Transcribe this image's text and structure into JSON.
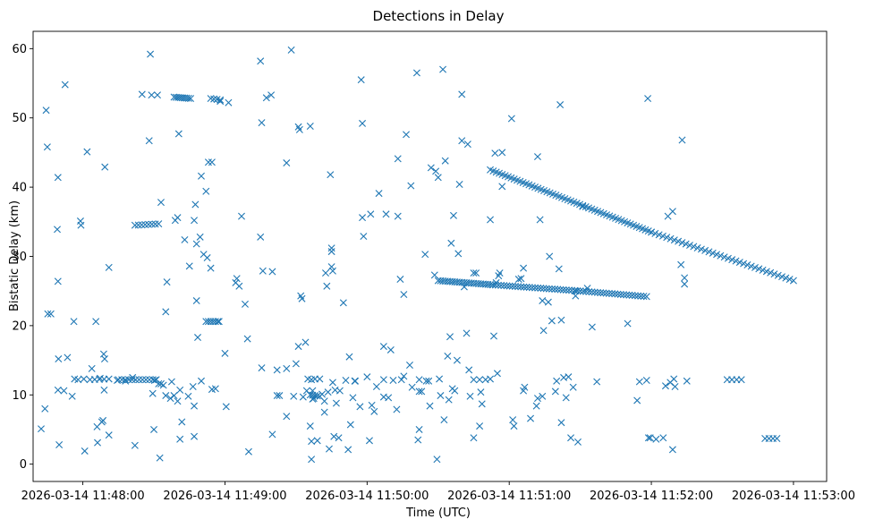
{
  "chart_data": {
    "type": "scatter",
    "title": "Detections in Delay",
    "xlabel": "Time (UTC)",
    "ylabel": "Bistatic Delay (km)",
    "marker": "x",
    "color": "#1f77b4",
    "xlim_seconds": [
      -21,
      314
    ],
    "ylim": [
      -2.5,
      62.5
    ],
    "x_ticks": [
      {
        "t": 0,
        "label": "2026-03-14 11:48:00"
      },
      {
        "t": 60,
        "label": "2026-03-14 11:49:00"
      },
      {
        "t": 120,
        "label": "2026-03-14 11:50:00"
      },
      {
        "t": 180,
        "label": "2026-03-14 11:51:00"
      },
      {
        "t": 240,
        "label": "2026-03-14 11:52:00"
      },
      {
        "t": 300,
        "label": "2026-03-14 11:53:00"
      }
    ],
    "y_ticks": [
      {
        "v": 0,
        "label": "0"
      },
      {
        "v": 10,
        "label": "10"
      },
      {
        "v": 20,
        "label": "20"
      },
      {
        "v": 30,
        "label": "30"
      },
      {
        "v": 40,
        "label": "40"
      },
      {
        "v": 50,
        "label": "50"
      },
      {
        "v": 60,
        "label": "60"
      }
    ],
    "tracks": [
      {
        "t0": 38.5,
        "t1": 45.5,
        "v0": 53.0,
        "v1": 52.8,
        "n": 9
      },
      {
        "t0": 54,
        "t1": 58,
        "v0": 52.8,
        "v1": 52.6,
        "n": 4
      },
      {
        "t0": 22,
        "t1": 32,
        "v0": 34.5,
        "v1": 34.7,
        "n": 8
      },
      {
        "t0": 52,
        "t1": 57,
        "v0": 20.6,
        "v1": 20.6,
        "n": 6
      },
      {
        "t0": 3,
        "t1": 11,
        "v0": 12.2,
        "v1": 12.3,
        "n": 5
      },
      {
        "t0": 15,
        "t1": 31,
        "v0": 12.2,
        "v1": 12.2,
        "n": 12
      },
      {
        "t0": 127,
        "t1": 142,
        "v0": 12.2,
        "v1": 12.2,
        "n": 3
      },
      {
        "t0": 96,
        "t1": 100,
        "v0": 10.0,
        "v1": 9.8,
        "n": 5
      },
      {
        "t0": 165,
        "t1": 170,
        "v0": 12.2,
        "v1": 12.2,
        "n": 3
      },
      {
        "t0": 272,
        "t1": 278,
        "v0": 12.2,
        "v1": 12.2,
        "n": 4
      },
      {
        "t0": 288,
        "t1": 293,
        "v0": 3.7,
        "v1": 3.7,
        "n": 4
      },
      {
        "t0": 172,
        "t1": 240,
        "v0": 42.5,
        "v1": 33.5,
        "n": 55
      },
      {
        "t0": 240,
        "t1": 300,
        "v0": 33.5,
        "v1": 26.5,
        "n": 38
      },
      {
        "t0": 150,
        "t1": 173,
        "v0": 26.5,
        "v1": 25.9,
        "n": 24
      },
      {
        "t0": 173,
        "t1": 210,
        "v0": 25.9,
        "v1": 25.0,
        "n": 32
      },
      {
        "t0": 210,
        "t1": 238,
        "v0": 25.0,
        "v1": 24.2,
        "n": 24
      }
    ],
    "points": [
      [
        -17.6,
        5.1
      ],
      [
        -16,
        8
      ],
      [
        -15.5,
        51.1
      ],
      [
        -15,
        45.8
      ],
      [
        -14.8,
        21.7
      ],
      [
        -13.5,
        21.7
      ],
      [
        -10.5,
        41.4
      ],
      [
        -10.8,
        33.9
      ],
      [
        -10.5,
        26.4
      ],
      [
        -10.3,
        15.2
      ],
      [
        -10.5,
        10.7
      ],
      [
        -10,
        2.8
      ],
      [
        -8,
        10.6
      ],
      [
        -7.5,
        54.8
      ],
      [
        -6.5,
        15.4
      ],
      [
        -4.5,
        9.8
      ],
      [
        -3.8,
        20.6
      ],
      [
        -3.5,
        12.3
      ],
      [
        -2,
        12.2
      ],
      [
        -1,
        35.1
      ],
      [
        -0.8,
        34.5
      ],
      [
        0.4,
        12.3
      ],
      [
        0.8,
        1.9
      ],
      [
        1.8,
        45.1
      ],
      [
        3.8,
        13.8
      ],
      [
        5.5,
        20.6
      ],
      [
        6,
        5.4
      ],
      [
        6.2,
        3.1
      ],
      [
        7.3,
        12.4
      ],
      [
        8,
        6.1
      ],
      [
        8.5,
        6.3
      ],
      [
        8.8,
        15.9
      ],
      [
        9,
        10.7
      ],
      [
        9.2,
        15.2
      ],
      [
        9.3,
        42.9
      ],
      [
        11,
        28.4
      ],
      [
        11,
        4.2
      ],
      [
        14.5,
        12.1
      ],
      [
        18,
        12.0
      ],
      [
        21,
        12.5
      ],
      [
        22,
        2.7
      ],
      [
        25,
        53.4
      ],
      [
        28,
        46.7
      ],
      [
        28.5,
        59.2
      ],
      [
        29,
        53.3
      ],
      [
        29.5,
        10.2
      ],
      [
        30,
        5.0
      ],
      [
        30.3,
        12.1
      ],
      [
        31.5,
        53.3
      ],
      [
        32,
        11.6
      ],
      [
        32.5,
        0.9
      ],
      [
        33,
        11.6
      ],
      [
        33,
        37.8
      ],
      [
        34,
        11.4
      ],
      [
        35,
        9.9
      ],
      [
        35,
        22
      ],
      [
        35.5,
        26.3
      ],
      [
        37,
        9.5
      ],
      [
        37.5,
        11.9
      ],
      [
        38.5,
        9.9
      ],
      [
        39,
        35.2
      ],
      [
        40,
        35.6
      ],
      [
        40,
        9.1
      ],
      [
        40.5,
        47.7
      ],
      [
        41,
        10.7
      ],
      [
        41,
        3.6
      ],
      [
        41.8,
        6.1
      ],
      [
        43,
        32.4
      ],
      [
        44.5,
        9.8
      ],
      [
        45,
        28.6
      ],
      [
        46.5,
        11.2
      ],
      [
        47,
        8.4
      ],
      [
        47,
        35.2
      ],
      [
        47,
        4.0
      ],
      [
        47.5,
        37.5
      ],
      [
        48,
        31.8
      ],
      [
        48,
        23.6
      ],
      [
        48.5,
        18.3
      ],
      [
        49.5,
        32.8
      ],
      [
        50,
        12
      ],
      [
        50,
        41.6
      ],
      [
        51,
        30.3
      ],
      [
        52,
        39.4
      ],
      [
        52.5,
        29.8
      ],
      [
        53,
        43.6
      ],
      [
        54,
        28.3
      ],
      [
        54.5,
        10.8
      ],
      [
        54.5,
        43.6
      ],
      [
        56,
        10.9
      ],
      [
        57.5,
        20.6
      ],
      [
        58,
        52.4
      ],
      [
        60,
        16
      ],
      [
        60.5,
        8.3
      ],
      [
        61.5,
        52.2
      ],
      [
        64.5,
        26.2
      ],
      [
        65,
        26.8
      ],
      [
        66,
        25.7
      ],
      [
        67,
        35.8
      ],
      [
        68.5,
        23.1
      ],
      [
        69.5,
        18.1
      ],
      [
        70,
        1.8
      ],
      [
        75,
        58.2
      ],
      [
        75,
        32.8
      ],
      [
        75.5,
        49.3
      ],
      [
        75.5,
        13.9
      ],
      [
        76,
        27.9
      ],
      [
        77.5,
        52.9
      ],
      [
        79.5,
        53.3
      ],
      [
        80,
        4.3
      ],
      [
        80,
        27.8
      ],
      [
        82,
        13.6
      ],
      [
        82,
        9.9
      ],
      [
        83,
        9.9
      ],
      [
        86,
        6.9
      ],
      [
        86,
        13.8
      ],
      [
        86,
        43.5
      ],
      [
        88,
        59.8
      ],
      [
        89,
        9.8
      ],
      [
        90,
        14.5
      ],
      [
        91,
        17
      ],
      [
        91,
        48.7
      ],
      [
        91.5,
        48.3
      ],
      [
        92,
        24.3
      ],
      [
        92.5,
        23.9
      ],
      [
        93,
        9.7
      ],
      [
        94,
        17.6
      ],
      [
        94.5,
        10.6
      ],
      [
        95,
        12.3
      ],
      [
        96,
        48.8
      ],
      [
        96,
        5.5
      ],
      [
        96.5,
        12.2
      ],
      [
        96.5,
        0.7
      ],
      [
        96.5,
        3.3
      ],
      [
        97,
        9.4
      ],
      [
        97,
        10.6
      ],
      [
        97.5,
        9.5
      ],
      [
        98,
        12.3
      ],
      [
        99,
        3.4
      ],
      [
        100,
        12.3
      ],
      [
        101,
        10.1
      ],
      [
        102,
        7.5
      ],
      [
        102,
        9.1
      ],
      [
        102.5,
        27.6
      ],
      [
        103,
        25.7
      ],
      [
        103.5,
        10.4
      ],
      [
        104,
        2.2
      ],
      [
        104.5,
        41.8
      ],
      [
        105,
        30.7
      ],
      [
        105,
        31.2
      ],
      [
        105,
        28.5
      ],
      [
        105.5,
        27.9
      ],
      [
        105.5,
        11.8
      ],
      [
        106,
        4.0
      ],
      [
        106.5,
        10.7
      ],
      [
        107,
        8.8
      ],
      [
        108,
        3.8
      ],
      [
        108.5,
        10.6
      ],
      [
        110,
        23.3
      ],
      [
        111,
        12.1
      ],
      [
        112,
        2.1
      ],
      [
        112.5,
        15.5
      ],
      [
        113,
        5.7
      ],
      [
        114,
        9.6
      ],
      [
        114.8,
        12
      ],
      [
        115,
        12
      ],
      [
        117,
        8.3
      ],
      [
        117.5,
        55.5
      ],
      [
        118,
        49.2
      ],
      [
        118,
        35.6
      ],
      [
        118.5,
        32.9
      ],
      [
        120,
        12.6
      ],
      [
        121,
        3.4
      ],
      [
        121.5,
        36.1
      ],
      [
        122,
        8.5
      ],
      [
        123,
        7.6
      ],
      [
        124,
        11.2
      ],
      [
        125,
        39.1
      ],
      [
        127,
        9.7
      ],
      [
        127,
        17
      ],
      [
        128,
        36.1
      ],
      [
        129,
        9.6
      ],
      [
        130,
        16.5
      ],
      [
        131,
        12.1
      ],
      [
        132.5,
        7.9
      ],
      [
        133,
        44.1
      ],
      [
        133,
        35.8
      ],
      [
        134,
        26.7
      ],
      [
        135.5,
        24.5
      ],
      [
        135.5,
        12.7
      ],
      [
        136.5,
        47.6
      ],
      [
        138,
        14.3
      ],
      [
        138.5,
        40.2
      ],
      [
        139,
        11.1
      ],
      [
        141,
        56.5
      ],
      [
        141.5,
        3.5
      ],
      [
        142,
        10.5
      ],
      [
        142,
        5.0
      ],
      [
        143,
        10.5
      ],
      [
        144.5,
        30.3
      ],
      [
        145,
        12.0
      ],
      [
        146,
        12
      ],
      [
        146.5,
        8.4
      ],
      [
        147,
        42.8
      ],
      [
        148.5,
        27.3
      ],
      [
        149,
        42.3
      ],
      [
        149.5,
        0.7
      ],
      [
        150,
        41.4
      ],
      [
        150.5,
        12.3
      ],
      [
        151,
        9.9
      ],
      [
        152,
        57
      ],
      [
        152.5,
        6.4
      ],
      [
        153,
        43.8
      ],
      [
        154,
        15.6
      ],
      [
        154.5,
        9.3
      ],
      [
        155,
        18.4
      ],
      [
        155.5,
        31.9
      ],
      [
        156,
        10.9
      ],
      [
        156.5,
        35.9
      ],
      [
        157,
        10.6
      ],
      [
        158,
        15
      ],
      [
        158.5,
        30.4
      ],
      [
        159,
        40.4
      ],
      [
        160,
        46.7
      ],
      [
        160,
        53.4
      ],
      [
        161,
        25.6
      ],
      [
        162,
        18.9
      ],
      [
        162.5,
        46.2
      ],
      [
        163,
        13.6
      ],
      [
        163.5,
        9.8
      ],
      [
        165,
        27.6
      ],
      [
        165,
        3.8
      ],
      [
        166,
        27.6
      ],
      [
        167.5,
        5.5
      ],
      [
        168,
        10.4
      ],
      [
        168.5,
        8.7
      ],
      [
        172,
        35.3
      ],
      [
        172,
        12.3
      ],
      [
        173.5,
        18.5
      ],
      [
        174,
        44.9
      ],
      [
        174.5,
        26.2
      ],
      [
        175,
        13.1
      ],
      [
        175.5,
        27.2
      ],
      [
        176,
        27.6
      ],
      [
        177,
        45
      ],
      [
        177,
        40.1
      ],
      [
        181,
        49.9
      ],
      [
        181.5,
        6.4
      ],
      [
        182,
        5.5
      ],
      [
        184,
        26.7
      ],
      [
        185,
        26.8
      ],
      [
        186,
        28.3
      ],
      [
        186,
        10.6
      ],
      [
        186.5,
        11.1
      ],
      [
        189,
        6.6
      ],
      [
        191.5,
        8.4
      ],
      [
        192,
        9.5
      ],
      [
        192,
        44.4
      ],
      [
        193,
        35.3
      ],
      [
        194,
        23.6
      ],
      [
        194,
        9.8
      ],
      [
        194.5,
        19.3
      ],
      [
        196.5,
        23.4
      ],
      [
        197,
        30
      ],
      [
        198,
        20.7
      ],
      [
        199.5,
        10.5
      ],
      [
        200,
        12
      ],
      [
        201,
        28.2
      ],
      [
        201.5,
        51.9
      ],
      [
        202,
        20.8
      ],
      [
        202,
        6
      ],
      [
        203,
        12.5
      ],
      [
        204,
        9.6
      ],
      [
        205,
        12.6
      ],
      [
        206,
        3.8
      ],
      [
        207,
        11.1
      ],
      [
        208,
        24.3
      ],
      [
        208,
        25
      ],
      [
        209,
        3.2
      ],
      [
        211,
        37.2
      ],
      [
        213,
        25.4
      ],
      [
        215,
        19.8
      ],
      [
        217,
        11.9
      ],
      [
        230,
        20.3
      ],
      [
        234,
        9.2
      ],
      [
        235,
        11.9
      ],
      [
        238.5,
        52.8
      ],
      [
        238,
        12.1
      ],
      [
        238.8,
        3.8
      ],
      [
        239.5,
        3.8
      ],
      [
        242,
        3.6
      ],
      [
        245,
        3.8
      ],
      [
        246,
        11.3
      ],
      [
        247,
        35.8
      ],
      [
        248,
        11.8
      ],
      [
        249,
        2.1
      ],
      [
        249,
        36.5
      ],
      [
        249.5,
        12.3
      ],
      [
        250,
        11.2
      ],
      [
        252.5,
        28.8
      ],
      [
        253,
        46.8
      ],
      [
        254,
        26.9
      ],
      [
        254,
        26
      ],
      [
        255,
        12
      ]
    ]
  }
}
